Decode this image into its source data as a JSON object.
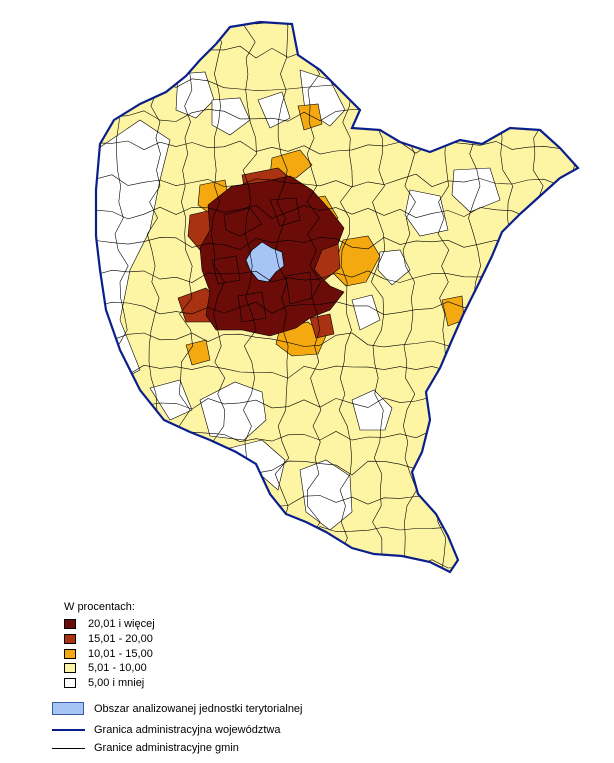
{
  "legend": {
    "title": "W procentach:",
    "classes": [
      {
        "label": "20,01 i więcej",
        "color": "#6b0c09"
      },
      {
        "label": "15,01 - 20,00",
        "color": "#a83212"
      },
      {
        "label": "10,01 - 15,00",
        "color": "#f3a90f"
      },
      {
        "label": "5,01 - 10,00",
        "color": "#fdf4a4"
      },
      {
        "label": "5,00 i mniej",
        "color": "#ffffff"
      }
    ],
    "analyzed_area": {
      "label": "Obszar analizowanej jednostki terytorialnej",
      "color": "#a7c4f7"
    },
    "voivodeship_border": {
      "label": "Granica administracyjna województwa",
      "color": "#0b1f8a"
    },
    "gmina_border": {
      "label": "Granice administracyjne gmin",
      "color": "#000000"
    }
  }
}
